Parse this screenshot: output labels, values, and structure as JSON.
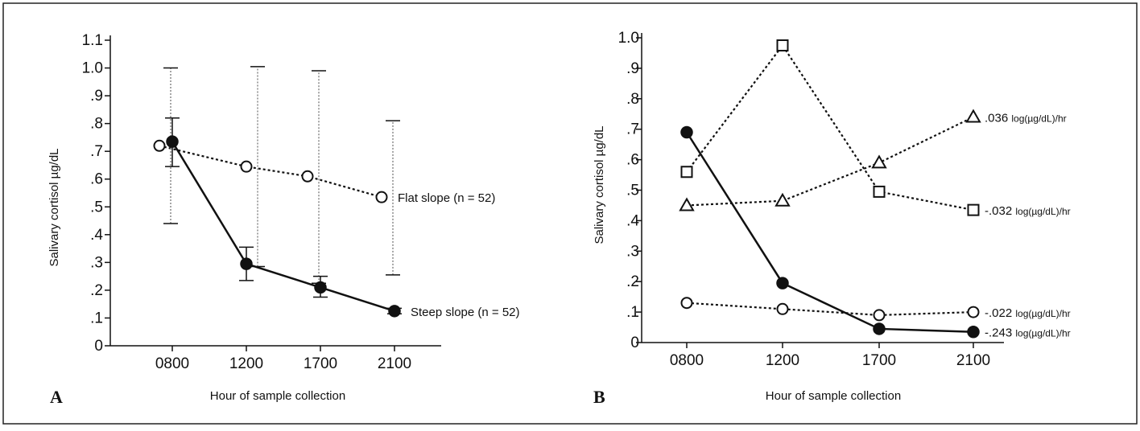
{
  "chart_data": [
    {
      "panel": "A",
      "type": "line",
      "xlabel": "Hour of sample collection",
      "ylabel": "Salivary cortisol µg/dL",
      "categories": [
        "0800",
        "1200",
        "1700",
        "2100"
      ],
      "ylim": [
        0,
        1.1
      ],
      "yticks": [
        0,
        0.1,
        0.2,
        0.3,
        0.4,
        0.5,
        0.6,
        0.7,
        0.8,
        0.9,
        1.0,
        1.1
      ],
      "ytick_labels": [
        "0",
        ".1",
        ".2",
        ".3",
        ".4",
        ".5",
        ".6",
        ".7",
        ".8",
        ".9",
        "1.0",
        "1.1"
      ],
      "series": [
        {
          "label": "Flat slope (n = 52)",
          "marker": "open-circle",
          "line": "dotted",
          "values": [
            0.72,
            0.645,
            0.61,
            0.535
          ],
          "error_low": [
            0.44,
            0.285,
            0.225,
            0.255
          ],
          "error_high": [
            1.0,
            1.005,
            0.99,
            0.81
          ]
        },
        {
          "label": "Steep slope (n = 52)",
          "marker": "filled-circle",
          "line": "solid",
          "values": [
            0.735,
            0.295,
            0.21,
            0.125
          ],
          "error_low": [
            0.645,
            0.235,
            0.175,
            0.115
          ],
          "error_high": [
            0.82,
            0.355,
            0.25,
            0.135
          ]
        }
      ]
    },
    {
      "panel": "B",
      "type": "line",
      "xlabel": "Hour of sample collection",
      "ylabel": "Salivary cortisol µg/dL",
      "categories": [
        "0800",
        "1200",
        "1700",
        "2100"
      ],
      "ylim": [
        0,
        1.0
      ],
      "yticks": [
        0,
        0.1,
        0.2,
        0.3,
        0.4,
        0.5,
        0.6,
        0.7,
        0.8,
        0.9,
        1.0
      ],
      "ytick_labels": [
        "0",
        ".1",
        ".2",
        ".3",
        ".4",
        ".5",
        ".6",
        ".7",
        ".8",
        ".9",
        "1.0"
      ],
      "series": [
        {
          "marker": "open-triangle",
          "line": "dotted",
          "values": [
            0.45,
            0.465,
            0.59,
            0.74
          ],
          "slope_value": ".036",
          "slope_unit": "log(µg/dL)/hr"
        },
        {
          "marker": "open-square",
          "line": "dotted",
          "values": [
            0.56,
            0.975,
            0.495,
            0.435
          ],
          "slope_value": "-.032",
          "slope_unit": "log(µg/dL)/hr"
        },
        {
          "marker": "open-circle",
          "line": "dotted",
          "values": [
            0.13,
            0.11,
            0.09,
            0.1
          ],
          "slope_value": "-.022",
          "slope_unit": "log(µg/dL)/hr"
        },
        {
          "marker": "filled-circle",
          "line": "solid",
          "values": [
            0.69,
            0.195,
            0.045,
            0.035
          ],
          "slope_value": "-.243",
          "slope_unit": "log(µg/dL)/hr"
        }
      ]
    }
  ],
  "colors": {
    "ink": "#111111",
    "background": "#ffffff",
    "errorbar_flat": "#888888"
  }
}
